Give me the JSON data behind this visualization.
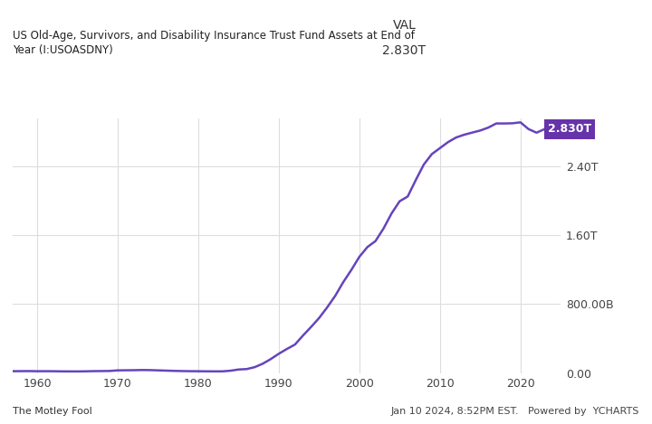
{
  "title_line1": "US Old-Age, Survivors, and Disability Insurance Trust Fund Assets at End of",
  "title_line2": "Year (I:USOASDNY)",
  "val_label": "VAL",
  "val_value": "2.830T",
  "line_color": "#6644bb",
  "background_color": "#ffffff",
  "grid_color": "#dddddd",
  "label_color_box": "#6633aa",
  "xlabel_ticks": [
    1960,
    1970,
    1980,
    1990,
    2000,
    2010,
    2020
  ],
  "ytick_labels": [
    "0.00",
    "800.00B",
    "1.60T",
    "2.40T"
  ],
  "ytick_values": [
    0,
    800000000000,
    1600000000000,
    2400000000000
  ],
  "ylim_max": 2950000000000,
  "xlim": [
    1957,
    2025
  ],
  "years": [
    1957,
    1958,
    1959,
    1960,
    1961,
    1962,
    1963,
    1964,
    1965,
    1966,
    1967,
    1968,
    1969,
    1970,
    1971,
    1972,
    1973,
    1974,
    1975,
    1976,
    1977,
    1978,
    1979,
    1980,
    1981,
    1982,
    1983,
    1984,
    1985,
    1986,
    1987,
    1988,
    1989,
    1990,
    1991,
    1992,
    1993,
    1994,
    1995,
    1996,
    1997,
    1998,
    1999,
    2000,
    2001,
    2002,
    2003,
    2004,
    2005,
    2006,
    2007,
    2008,
    2009,
    2010,
    2011,
    2012,
    2013,
    2014,
    2015,
    2016,
    2017,
    2018,
    2019,
    2020,
    2021,
    2022,
    2023
  ],
  "values": [
    22500000000,
    23000000000,
    23500000000,
    22000000000,
    22500000000,
    22000000000,
    20500000000,
    20000000000,
    19800000000,
    21000000000,
    23000000000,
    24000000000,
    25000000000,
    32000000000,
    33000000000,
    34000000000,
    36000000000,
    35000000000,
    32000000000,
    29000000000,
    26000000000,
    24000000000,
    22500000000,
    22000000000,
    21000000000,
    20500000000,
    20600000000,
    28000000000,
    42000000000,
    47000000000,
    69000000000,
    109000000000,
    163000000000,
    225000000000,
    280000000000,
    331000000000,
    436000000000,
    535000000000,
    639000000000,
    762000000000,
    896000000000,
    1055000000000,
    1196000000000,
    1349000000000,
    1462000000000,
    1531000000000,
    1677000000000,
    1852000000000,
    1993000000000,
    2048000000000,
    2238000000000,
    2419000000000,
    2540000000000,
    2609000000000,
    2678000000000,
    2732000000000,
    2764000000000,
    2789000000000,
    2813000000000,
    2847000000000,
    2895000000000,
    2895000000000,
    2897000000000,
    2908000000000,
    2830000000000,
    2788000000000,
    2830000000000
  ],
  "footer_left": "The Motley Fool",
  "footer_right": "Jan 10 2024, 8:52PM EST.   Powered by  YCHARTS"
}
